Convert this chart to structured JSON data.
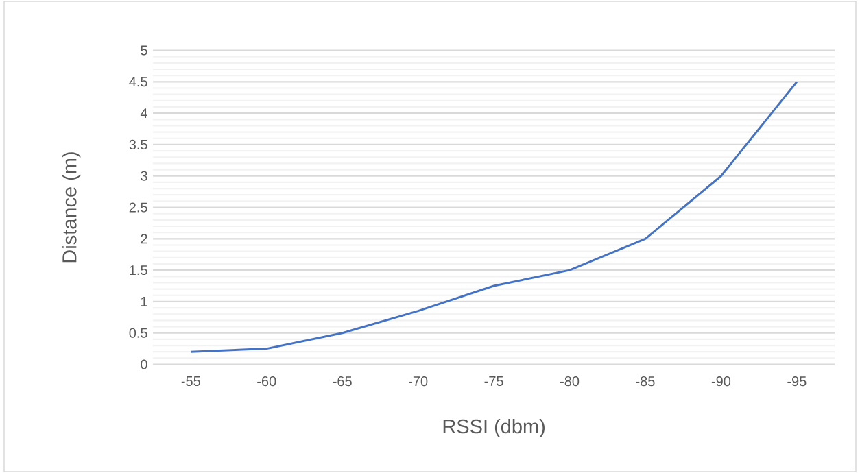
{
  "chart_data": {
    "type": "line",
    "xlabel": "RSSI (dbm)",
    "ylabel": "Distance (m)",
    "categories": [
      "-55",
      "-60",
      "-65",
      "-70",
      "-75",
      "-80",
      "-85",
      "-90",
      "-95"
    ],
    "series": [
      {
        "color": "#4472c4",
        "values": [
          0.2,
          0.25,
          0.5,
          0.85,
          1.25,
          1.5,
          2,
          3,
          4.5
        ]
      }
    ],
    "ylim": [
      0,
      5
    ],
    "yticks": [
      0,
      0.5,
      1,
      1.5,
      2,
      2.5,
      3,
      3.5,
      4,
      4.5,
      5
    ],
    "grid": "y"
  }
}
